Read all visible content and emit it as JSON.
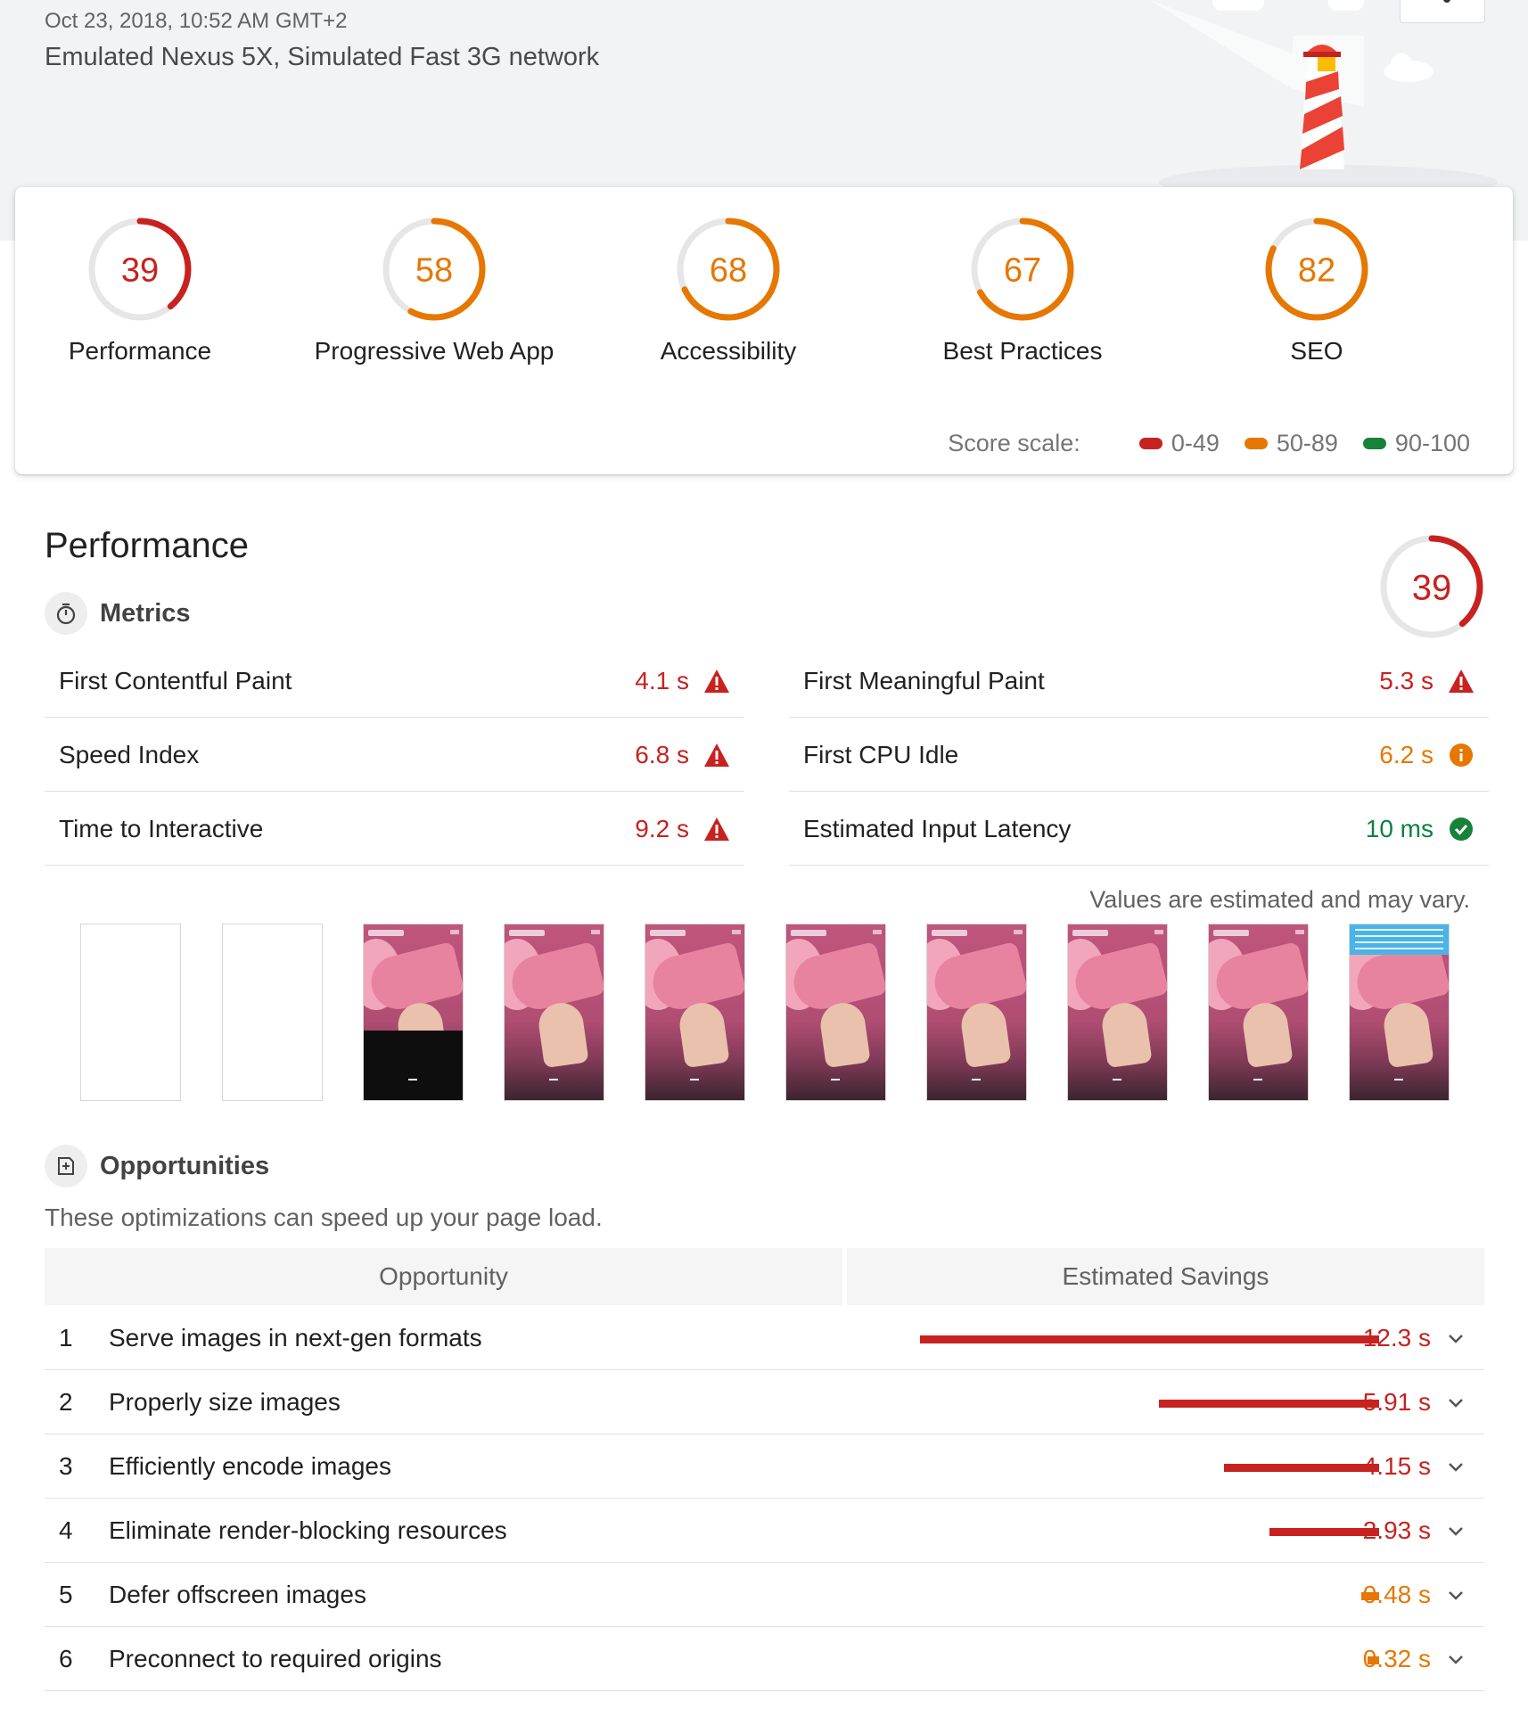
{
  "header": {
    "date": "Oct 23, 2018, 10:52 AM GMT+2",
    "device": "Emulated Nexus 5X, Simulated Fast 3G network"
  },
  "categories": [
    {
      "label": "Performance",
      "score": "39",
      "fraction": 0.39,
      "color": "#c7221f"
    },
    {
      "label": "Progressive Web App",
      "score": "58",
      "fraction": 0.58,
      "color": "#e67700"
    },
    {
      "label": "Accessibility",
      "score": "68",
      "fraction": 0.68,
      "color": "#e67700"
    },
    {
      "label": "Best Practices",
      "score": "67",
      "fraction": 0.67,
      "color": "#e67700"
    },
    {
      "label": "SEO",
      "score": "82",
      "fraction": 0.82,
      "color": "#e67700"
    }
  ],
  "scale": {
    "title": "Score scale:",
    "ranges": [
      {
        "label": "0-49",
        "color": "#c7221f"
      },
      {
        "label": "50-89",
        "color": "#e67700"
      },
      {
        "label": "90-100",
        "color": "#178239"
      }
    ]
  },
  "performance": {
    "title": "Performance",
    "score": "39",
    "fraction": 0.39,
    "metrics_title": "Metrics",
    "metrics": [
      {
        "name": "First Contentful Paint",
        "value": "4.1 s",
        "status": "fail"
      },
      {
        "name": "First Meaningful Paint",
        "value": "5.3 s",
        "status": "fail"
      },
      {
        "name": "Speed Index",
        "value": "6.8 s",
        "status": "fail"
      },
      {
        "name": "First CPU Idle",
        "value": "6.2 s",
        "status": "average"
      },
      {
        "name": "Time to Interactive",
        "value": "9.2 s",
        "status": "fail"
      },
      {
        "name": "Estimated Input Latency",
        "value": "10 ms",
        "status": "pass"
      }
    ],
    "estimate_note": "Values are estimated and may vary."
  },
  "opportunities": {
    "title": "Opportunities",
    "subtitle": "These optimizations can speed up your page load.",
    "col_opportunity": "Opportunity",
    "col_savings": "Estimated Savings",
    "items": [
      {
        "num": "1",
        "name": "Serve images in next-gen formats",
        "value": "12.3 s",
        "seconds": 12.3,
        "status": "fail"
      },
      {
        "num": "2",
        "name": "Properly size images",
        "value": "5.91 s",
        "seconds": 5.91,
        "status": "fail"
      },
      {
        "num": "3",
        "name": "Efficiently encode images",
        "value": "4.15 s",
        "seconds": 4.15,
        "status": "fail"
      },
      {
        "num": "4",
        "name": "Eliminate render-blocking resources",
        "value": "2.93 s",
        "seconds": 2.93,
        "status": "fail"
      },
      {
        "num": "5",
        "name": "Defer offscreen images",
        "value": "0.48 s",
        "seconds": 0.48,
        "status": "average"
      },
      {
        "num": "6",
        "name": "Preconnect to required origins",
        "value": "0.32 s",
        "seconds": 0.32,
        "status": "average"
      }
    ]
  }
}
